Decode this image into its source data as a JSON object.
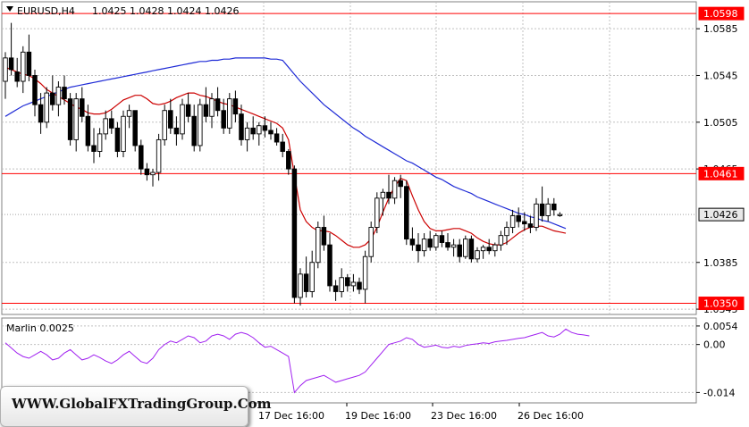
{
  "header": {
    "symbol": "EURUSD,H4",
    "ohlc": "1.0425 1.0428 1.0424 1.0426"
  },
  "price_axis": {
    "ticks": [
      "1.0585",
      "1.0545",
      "1.0505",
      "1.0465",
      "1.0385",
      "1.0345"
    ]
  },
  "price_tags": {
    "top_level": "1.0598",
    "mid_level": "1.0461",
    "current": "1.0426",
    "bottom_level": "1.0350"
  },
  "indicator": {
    "title": "Marlin 0.0025",
    "ticks": [
      "0.0054",
      "0.00",
      "-0.014"
    ]
  },
  "time_axis": {
    "labels": [
      "17 Dec 16:00",
      "19 Dec 16:00",
      "23 Dec 16:00",
      "26 Dec 16:00"
    ]
  },
  "watermark": "WWW.GlobalFXTradingGroup.Com",
  "colors": {
    "level_line": "#ff0000",
    "ma_fast": "#cc0000",
    "ma_slow": "#1f2bd6",
    "oscillator": "#a020f0",
    "grid": "#c0c0c0"
  },
  "chart_data": [
    {
      "type": "candlestick",
      "title": "EURUSD,H4",
      "ylim": [
        1.0342,
        1.0605
      ],
      "levels": [
        1.0598,
        1.0461,
        1.035
      ],
      "current_price": 1.0426,
      "candles": [
        [
          1.054,
          1.0565,
          1.0525,
          1.056
        ],
        [
          1.056,
          1.059,
          1.0545,
          1.055
        ],
        [
          1.0548,
          1.056,
          1.0535,
          1.054
        ],
        [
          1.054,
          1.057,
          1.053,
          1.0565
        ],
        [
          1.0565,
          1.058,
          1.054,
          1.0545
        ],
        [
          1.0545,
          1.055,
          1.051,
          1.052
        ],
        [
          1.052,
          1.053,
          1.0495,
          1.0505
        ],
        [
          1.0505,
          1.0535,
          1.05,
          1.053
        ],
        [
          1.053,
          1.0545,
          1.0515,
          1.052
        ],
        [
          1.052,
          1.054,
          1.051,
          1.0535
        ],
        [
          1.0535,
          1.0545,
          1.052,
          1.0525
        ],
        [
          1.0525,
          1.053,
          1.0485,
          1.049
        ],
        [
          1.049,
          1.053,
          1.048,
          1.0525
        ],
        [
          1.0525,
          1.0535,
          1.0505,
          1.051
        ],
        [
          1.051,
          1.052,
          1.048,
          1.0485
        ],
        [
          1.0485,
          1.05,
          1.047,
          1.048
        ],
        [
          1.048,
          1.05,
          1.0475,
          1.0495
        ],
        [
          1.0495,
          1.0515,
          1.049,
          1.0508
        ],
        [
          1.0508,
          1.0515,
          1.0495,
          1.05
        ],
        [
          1.05,
          1.0505,
          1.0475,
          1.048
        ],
        [
          1.048,
          1.0515,
          1.0475,
          1.051
        ],
        [
          1.051,
          1.052,
          1.05,
          1.0515
        ],
        [
          1.0515,
          1.0515,
          1.048,
          1.0485
        ],
        [
          1.0485,
          1.049,
          1.046,
          1.0465
        ],
        [
          1.0465,
          1.047,
          1.0455,
          1.046
        ],
        [
          1.046,
          1.0465,
          1.045,
          1.0462
        ],
        [
          1.0462,
          1.0495,
          1.0455,
          1.049
        ],
        [
          1.049,
          1.052,
          1.0485,
          1.0515
        ],
        [
          1.0515,
          1.0525,
          1.0495,
          1.05
        ],
        [
          1.05,
          1.051,
          1.0485,
          1.0495
        ],
        [
          1.0495,
          1.0525,
          1.049,
          1.052
        ],
        [
          1.052,
          1.053,
          1.0505,
          1.051
        ],
        [
          1.051,
          1.052,
          1.048,
          1.0485
        ],
        [
          1.0485,
          1.0525,
          1.048,
          1.052
        ],
        [
          1.052,
          1.0535,
          1.0505,
          1.051
        ],
        [
          1.051,
          1.053,
          1.05,
          1.0525
        ],
        [
          1.0525,
          1.0535,
          1.051,
          1.0515
        ],
        [
          1.0515,
          1.0525,
          1.0495,
          1.05
        ],
        [
          1.05,
          1.053,
          1.0495,
          1.0525
        ],
        [
          1.0525,
          1.0532,
          1.0505,
          1.0512
        ],
        [
          1.0512,
          1.052,
          1.0485,
          1.049
        ],
        [
          1.049,
          1.0505,
          1.048,
          1.05
        ],
        [
          1.05,
          1.051,
          1.049,
          1.0495
        ],
        [
          1.0495,
          1.0505,
          1.0485,
          1.0502
        ],
        [
          1.0502,
          1.051,
          1.0492,
          1.0498
        ],
        [
          1.0498,
          1.0505,
          1.049,
          1.0495
        ],
        [
          1.0495,
          1.05,
          1.0485,
          1.0488
        ],
        [
          1.0488,
          1.0495,
          1.0475,
          1.048
        ],
        [
          1.048,
          1.0482,
          1.046,
          1.0465
        ],
        [
          1.0465,
          1.0468,
          1.035,
          1.0355
        ],
        [
          1.0355,
          1.038,
          1.0348,
          1.0375
        ],
        [
          1.0375,
          1.039,
          1.0355,
          1.036
        ],
        [
          1.036,
          1.0395,
          1.0355,
          1.0385
        ],
        [
          1.0385,
          1.042,
          1.038,
          1.0415
        ],
        [
          1.0415,
          1.0425,
          1.0395,
          1.04
        ],
        [
          1.04,
          1.041,
          1.036,
          1.0365
        ],
        [
          1.0365,
          1.037,
          1.0352,
          1.036
        ],
        [
          1.036,
          1.038,
          1.0355,
          1.0372
        ],
        [
          1.0372,
          1.0375,
          1.036,
          1.0365
        ],
        [
          1.0365,
          1.0375,
          1.036,
          1.0368
        ],
        [
          1.0368,
          1.0372,
          1.0358,
          1.0362
        ],
        [
          1.0362,
          1.0395,
          1.035,
          1.039
        ],
        [
          1.039,
          1.042,
          1.0385,
          1.0415
        ],
        [
          1.0415,
          1.0445,
          1.041,
          1.044
        ],
        [
          1.044,
          1.0448,
          1.0425,
          1.0445
        ],
        [
          1.0445,
          1.046,
          1.0435,
          1.044
        ],
        [
          1.044,
          1.0458,
          1.0435,
          1.0455
        ],
        [
          1.0455,
          1.046,
          1.044,
          1.045
        ],
        [
          1.045,
          1.0455,
          1.04,
          1.0405
        ],
        [
          1.0405,
          1.0415,
          1.0395,
          1.04
        ],
        [
          1.04,
          1.041,
          1.0385,
          1.0395
        ],
        [
          1.0395,
          1.041,
          1.039,
          1.0405
        ],
        [
          1.0405,
          1.0412,
          1.0395,
          1.0398
        ],
        [
          1.0398,
          1.041,
          1.0395,
          1.0408
        ],
        [
          1.0408,
          1.0412,
          1.0398,
          1.0402
        ],
        [
          1.0402,
          1.041,
          1.0395,
          1.0398
        ],
        [
          1.0398,
          1.0405,
          1.039,
          1.04
        ],
        [
          1.04,
          1.0405,
          1.0385,
          1.039
        ],
        [
          1.039,
          1.0408,
          1.0388,
          1.0405
        ],
        [
          1.0405,
          1.0408,
          1.0385,
          1.0388
        ],
        [
          1.0388,
          1.0398,
          1.0385,
          1.0395
        ],
        [
          1.0395,
          1.04,
          1.0388,
          1.0398
        ],
        [
          1.0398,
          1.0405,
          1.0392,
          1.0395
        ],
        [
          1.0395,
          1.0402,
          1.039,
          1.04
        ],
        [
          1.04,
          1.0412,
          1.0395,
          1.0408
        ],
        [
          1.0408,
          1.042,
          1.04,
          1.0415
        ],
        [
          1.0415,
          1.043,
          1.041,
          1.0425
        ],
        [
          1.0425,
          1.0432,
          1.0415,
          1.042
        ],
        [
          1.042,
          1.0428,
          1.0412,
          1.0418
        ],
        [
          1.0418,
          1.0425,
          1.041,
          1.0415
        ],
        [
          1.0415,
          1.044,
          1.0412,
          1.0435
        ],
        [
          1.0435,
          1.045,
          1.042,
          1.0425
        ],
        [
          1.0425,
          1.044,
          1.042,
          1.0435
        ],
        [
          1.0435,
          1.044,
          1.0425,
          1.043
        ],
        [
          1.0425,
          1.0428,
          1.0424,
          1.0426
        ]
      ],
      "ma_fast": [
        1.0552,
        1.055,
        1.0548,
        1.0546,
        1.0545,
        1.0542,
        1.0538,
        1.0533,
        1.053,
        1.0527,
        1.0524,
        1.0521,
        1.0518,
        1.0516,
        1.0513,
        1.0512,
        1.0512,
        1.0513,
        1.0516,
        1.052,
        1.0524,
        1.0526,
        1.0528,
        1.0528,
        1.0525,
        1.0521,
        1.052,
        1.0521,
        1.0523,
        1.0526,
        1.0528,
        1.053,
        1.053,
        1.0528,
        1.0527,
        1.0525,
        1.0523,
        1.0521,
        1.052,
        1.0518,
        1.0516,
        1.0514,
        1.0512,
        1.051,
        1.0508,
        1.0506,
        1.0504,
        1.05,
        1.049,
        1.046,
        1.043,
        1.042,
        1.0415,
        1.0412,
        1.0412,
        1.0411,
        1.0408,
        1.0404,
        1.04,
        1.0398,
        1.0398,
        1.04,
        1.0405,
        1.0415,
        1.0428,
        1.044,
        1.045,
        1.0457,
        1.0455,
        1.0442,
        1.043,
        1.042,
        1.0414,
        1.0412,
        1.0412,
        1.0413,
        1.0414,
        1.0414,
        1.0412,
        1.041,
        1.0406,
        1.0403,
        1.0401,
        1.04,
        1.04,
        1.0402,
        1.0406,
        1.041,
        1.0413,
        1.0415,
        1.0416,
        1.0416,
        1.0414,
        1.0412,
        1.0411,
        1.041
      ],
      "ma_slow": [
        1.051,
        1.0513,
        1.0516,
        1.0519,
        1.0521,
        1.0523,
        1.0525,
        1.0527,
        1.0529,
        1.0531,
        1.0533,
        1.0535,
        1.0536,
        1.0537,
        1.0538,
        1.0539,
        1.054,
        1.0541,
        1.0542,
        1.0543,
        1.0544,
        1.0545,
        1.0546,
        1.0547,
        1.0548,
        1.0549,
        1.055,
        1.0551,
        1.0552,
        1.0553,
        1.0554,
        1.0555,
        1.0556,
        1.0557,
        1.0557,
        1.0558,
        1.0558,
        1.0559,
        1.0559,
        1.056,
        1.056,
        1.056,
        1.056,
        1.056,
        1.056,
        1.0559,
        1.0559,
        1.0558,
        1.0552,
        1.0546,
        1.054,
        1.0535,
        1.053,
        1.0525,
        1.052,
        1.0516,
        1.0512,
        1.0508,
        1.0504,
        1.05,
        1.0497,
        1.0493,
        1.049,
        1.0487,
        1.0484,
        1.0481,
        1.0478,
        1.0475,
        1.0472,
        1.047,
        1.0467,
        1.0464,
        1.0461,
        1.0458,
        1.0456,
        1.0453,
        1.045,
        1.0448,
        1.0446,
        1.0444,
        1.0441,
        1.0439,
        1.0437,
        1.0435,
        1.0433,
        1.0431,
        1.0429,
        1.0427,
        1.0426,
        1.0424,
        1.0423,
        1.0421,
        1.042,
        1.0418,
        1.0416,
        1.0414
      ]
    },
    {
      "type": "line",
      "title": "Marlin 0.0025",
      "ylim": [
        -0.0165,
        0.0072
      ],
      "ticks": [
        0.0054,
        0.0,
        -0.014
      ],
      "series": [
        {
          "values": [
            0.0005,
            -0.001,
            -0.0025,
            -0.0035,
            -0.004,
            -0.003,
            -0.002,
            -0.003,
            -0.0045,
            -0.004,
            -0.0025,
            -0.0015,
            -0.003,
            -0.0045,
            -0.004,
            -0.003,
            -0.0038,
            -0.0048,
            -0.0055,
            -0.0045,
            -0.003,
            -0.002,
            -0.0035,
            -0.005,
            -0.0055,
            -0.004,
            -0.0015,
            0.0,
            0.001,
            0.0005,
            0.0015,
            0.0025,
            0.002,
            0.0005,
            0.001,
            0.0025,
            0.003,
            0.0025,
            0.0015,
            0.003,
            0.0035,
            0.003,
            0.002,
            0.0005,
            -0.0008,
            -0.0005,
            -0.0015,
            -0.0025,
            -0.0035,
            -0.014,
            -0.012,
            -0.0105,
            -0.01,
            -0.0095,
            -0.009,
            -0.01,
            -0.011,
            -0.0105,
            -0.01,
            -0.0095,
            -0.009,
            -0.008,
            -0.006,
            -0.004,
            -0.002,
            0.0,
            0.0005,
            0.001,
            0.002,
            0.0015,
            0.0,
            -0.0008,
            -0.0005,
            -0.0002,
            -0.0008,
            -0.001,
            -0.0005,
            -0.0008,
            -0.0003,
            0.0,
            0.0002,
            0.0005,
            0.0003,
            0.0008,
            0.001,
            0.0012,
            0.0015,
            0.0018,
            0.002,
            0.0025,
            0.003,
            0.0035,
            0.0025,
            0.0022,
            0.003,
            0.0045,
            0.0035,
            0.003,
            0.0028,
            0.0025
          ]
        }
      ]
    }
  ]
}
